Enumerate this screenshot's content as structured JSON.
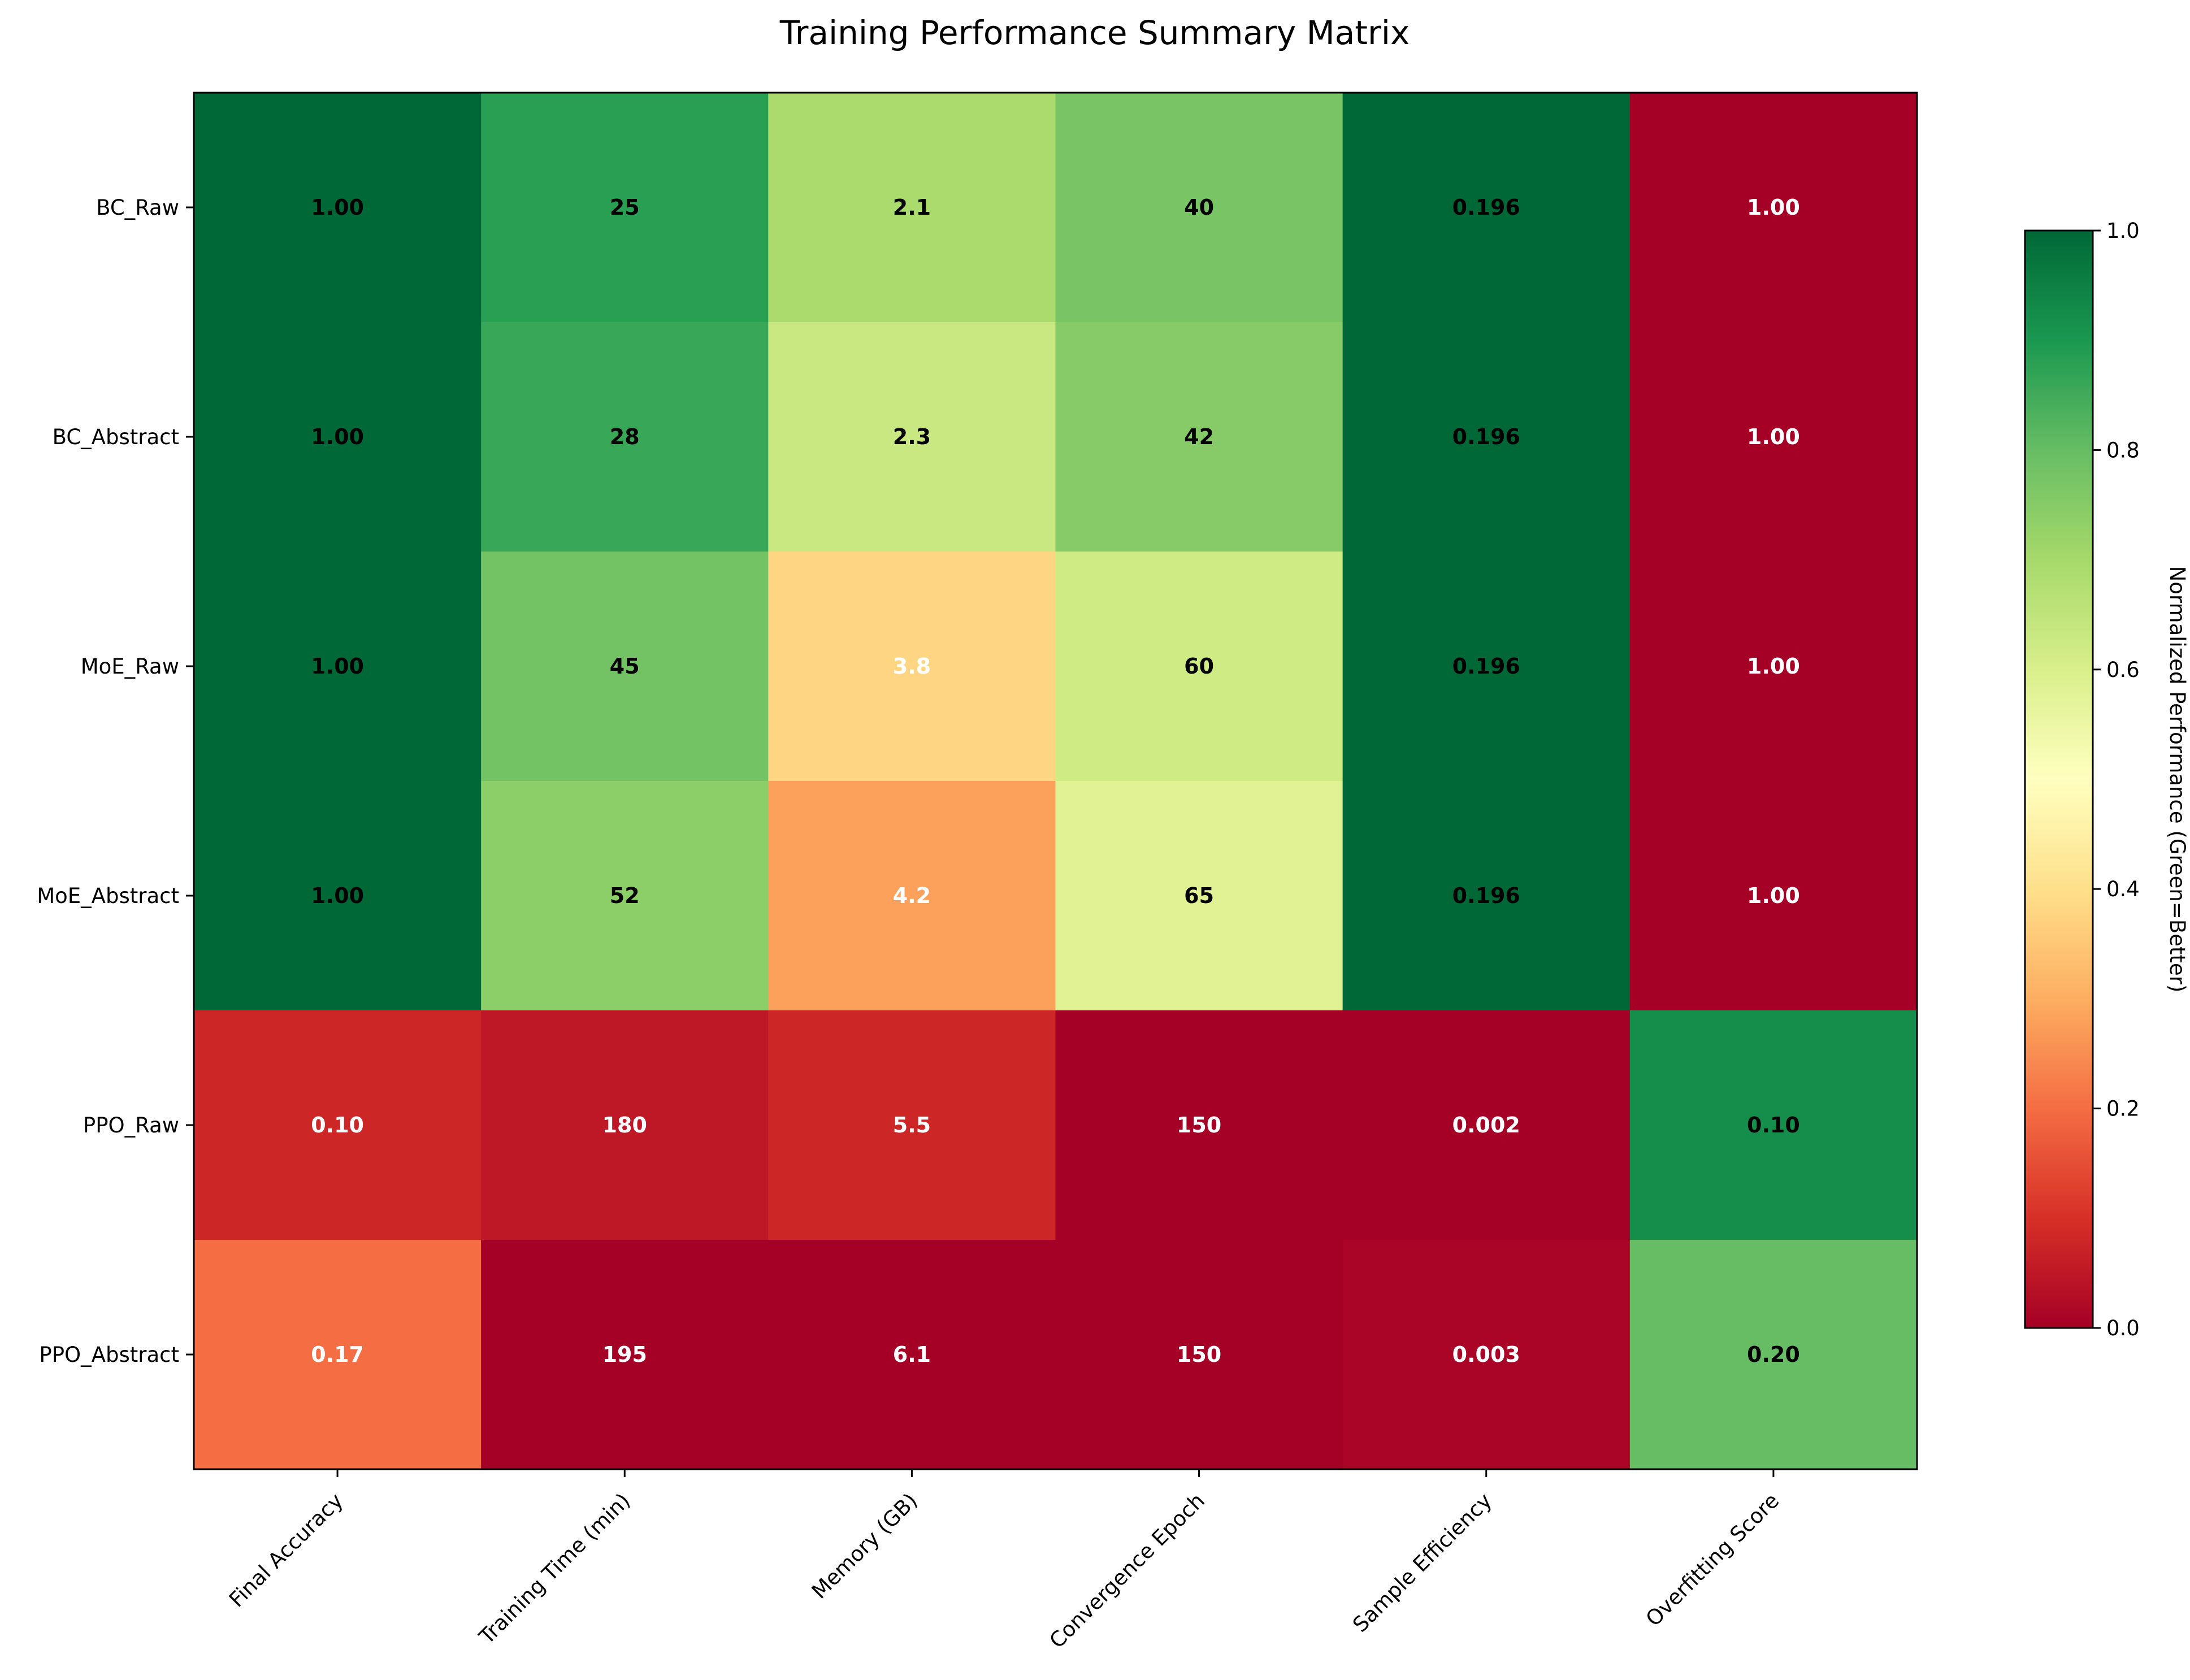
{
  "chart_data": {
    "type": "heatmap",
    "title": "Training Performance Summary Matrix",
    "rows": [
      "BC_Raw",
      "BC_Abstract",
      "MoE_Raw",
      "MoE_Abstract",
      "PPO_Raw",
      "PPO_Abstract"
    ],
    "columns": [
      "Final Accuracy",
      "Training Time (min)",
      "Memory (GB)",
      "Convergence Epoch",
      "Sample Efficiency",
      "Overfitting Score"
    ],
    "cell_labels": [
      [
        "1.00",
        "25",
        "2.1",
        "40",
        "0.196",
        "1.00"
      ],
      [
        "1.00",
        "28",
        "2.3",
        "42",
        "0.196",
        "1.00"
      ],
      [
        "1.00",
        "45",
        "3.8",
        "60",
        "0.196",
        "1.00"
      ],
      [
        "1.00",
        "52",
        "4.2",
        "65",
        "0.196",
        "1.00"
      ],
      [
        "0.10",
        "180",
        "5.5",
        "150",
        "0.002",
        "0.10"
      ],
      [
        "0.17",
        "195",
        "6.1",
        "150",
        "0.003",
        "0.20"
      ]
    ],
    "normalized_values": [
      [
        1.0,
        0.88,
        0.69,
        0.77,
        1.0,
        0.0
      ],
      [
        1.0,
        0.86,
        0.63,
        0.75,
        1.0,
        0.0
      ],
      [
        1.0,
        0.78,
        0.38,
        0.62,
        1.0,
        0.0
      ],
      [
        1.0,
        0.74,
        0.28,
        0.58,
        1.0,
        0.0
      ],
      [
        0.08,
        0.05,
        0.08,
        0.0,
        0.0,
        0.92
      ],
      [
        0.2,
        0.0,
        0.0,
        0.0,
        0.01,
        0.8
      ]
    ],
    "colormap": "RdYlGn",
    "colorbar": {
      "label": "Normalized Performance (Green=Better)",
      "range": [
        0.0,
        1.0
      ],
      "ticks": [
        "0.0",
        "0.2",
        "0.4",
        "0.6",
        "0.8",
        "1.0"
      ]
    },
    "colormap_stops": [
      "#a50026",
      "#d73027",
      "#f46d43",
      "#fdae61",
      "#fee08b",
      "#ffffbf",
      "#d9ef8b",
      "#a6d96a",
      "#66bd63",
      "#1a9850",
      "#006837"
    ]
  }
}
